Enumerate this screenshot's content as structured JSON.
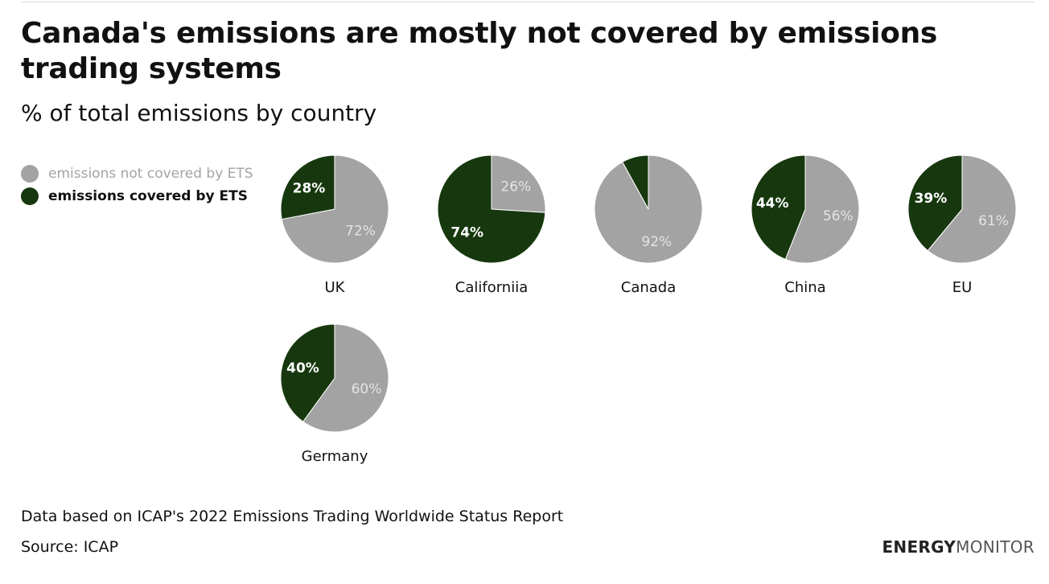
{
  "title": "Canada's emissions are mostly not covered by emissions trading systems",
  "subtitle": "% of total emissions by country",
  "legend": [
    {
      "label": "emissions not covered by ETS",
      "color": "#a3a3a3"
    },
    {
      "label": "emissions covered by ETS",
      "color": "#17380e"
    }
  ],
  "chart_data": {
    "type": "pie",
    "title": "Canada's emissions are mostly not covered by emissions trading systems",
    "subtitle": "% of total emissions by country",
    "series_names": [
      "emissions not covered by ETS",
      "emissions covered by ETS"
    ],
    "pies": [
      {
        "name": "UK",
        "not_covered": 72,
        "covered": 28,
        "not_covered_label": "72%",
        "covered_label": "28%"
      },
      {
        "name": "Californiia",
        "not_covered": 26,
        "covered": 74,
        "not_covered_label": "26%",
        "covered_label": "74%"
      },
      {
        "name": "Canada",
        "not_covered": 92,
        "covered": 8,
        "not_covered_label": "92%",
        "covered_label": ""
      },
      {
        "name": "China",
        "not_covered": 56,
        "covered": 44,
        "not_covered_label": "56%",
        "covered_label": "44%"
      },
      {
        "name": "EU",
        "not_covered": 61,
        "covered": 39,
        "not_covered_label": "61%",
        "covered_label": "39%"
      },
      {
        "name": "Germany",
        "not_covered": 60,
        "covered": 40,
        "not_covered_label": "60%",
        "covered_label": "40%"
      }
    ]
  },
  "footer": {
    "note": "Data based on ICAP's 2022 Emissions Trading Worldwide Status Report",
    "source": "Source: ICAP",
    "logo_bold": "ENERGY",
    "logo_light": "MONITOR"
  }
}
